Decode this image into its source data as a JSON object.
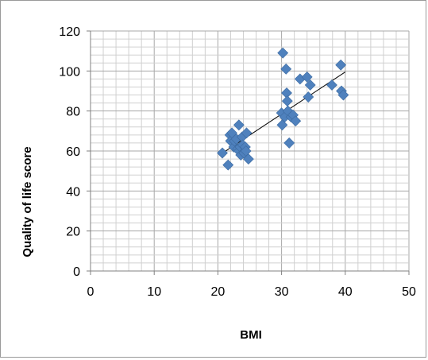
{
  "chart_data": {
    "type": "scatter",
    "title": "",
    "xlabel": "BMI",
    "ylabel": "Quality of life score",
    "xlim": [
      0,
      50
    ],
    "ylim": [
      0,
      120
    ],
    "x_ticks": [
      0,
      10,
      20,
      30,
      40,
      50
    ],
    "y_ticks": [
      0,
      20,
      40,
      60,
      80,
      100,
      120
    ],
    "grid": {
      "major": true,
      "minor": true
    },
    "legend": "none",
    "colors": {
      "marker": "#4f81bd",
      "trendline": "#000000",
      "grid": "#c8c8c8",
      "axis": "#808080"
    },
    "marker": "diamond",
    "series": [
      {
        "points": [
          [
            20.7,
            59
          ],
          [
            21.6,
            53
          ],
          [
            21.9,
            68
          ],
          [
            22.0,
            65
          ],
          [
            22.2,
            69
          ],
          [
            22.5,
            62
          ],
          [
            22.6,
            65
          ],
          [
            22.9,
            66
          ],
          [
            23.1,
            61
          ],
          [
            23.3,
            73
          ],
          [
            23.3,
            60
          ],
          [
            23.5,
            62
          ],
          [
            23.6,
            58
          ],
          [
            23.8,
            67
          ],
          [
            23.9,
            63
          ],
          [
            24.1,
            59
          ],
          [
            24.3,
            62
          ],
          [
            24.4,
            60
          ],
          [
            24.5,
            69
          ],
          [
            24.8,
            56
          ],
          [
            30.0,
            79
          ],
          [
            30.1,
            73
          ],
          [
            30.2,
            109
          ],
          [
            30.5,
            77
          ],
          [
            30.7,
            101
          ],
          [
            30.8,
            89
          ],
          [
            30.9,
            85
          ],
          [
            31.0,
            80
          ],
          [
            31.2,
            64
          ],
          [
            31.5,
            77
          ],
          [
            31.8,
            78
          ],
          [
            32.2,
            75
          ],
          [
            32.9,
            96
          ],
          [
            34.0,
            97
          ],
          [
            34.2,
            87
          ],
          [
            34.5,
            93
          ],
          [
            37.9,
            93
          ],
          [
            39.3,
            103
          ],
          [
            39.4,
            90
          ],
          [
            39.7,
            88
          ]
        ]
      }
    ],
    "trendline": {
      "type": "linear",
      "x_start": 20.5,
      "y_start": 58.5,
      "x_end": 40.0,
      "y_end": 99.5
    }
  }
}
